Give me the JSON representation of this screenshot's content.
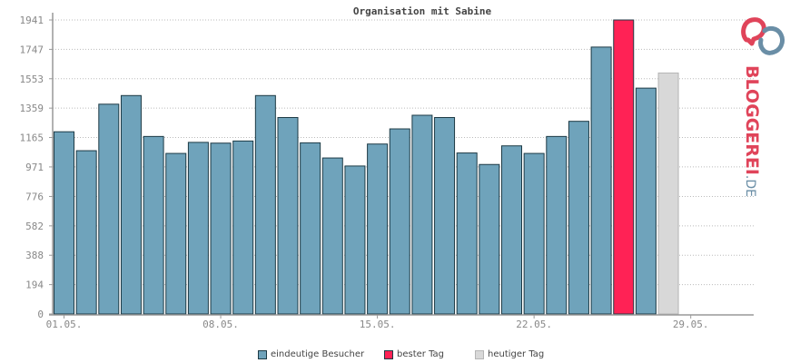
{
  "chart_data": {
    "type": "bar",
    "title": "Organisation mit Sabine",
    "xlabel": "",
    "ylabel": "",
    "ylim": [
      0,
      1941
    ],
    "yticks": [
      0,
      194,
      388,
      582,
      776,
      971,
      1165,
      1359,
      1553,
      1747,
      1941
    ],
    "xtick_labels": [
      {
        "day": 1,
        "label": "01.05."
      },
      {
        "day": 8,
        "label": "08.05."
      },
      {
        "day": 15,
        "label": "15.05."
      },
      {
        "day": 22,
        "label": "22.05."
      },
      {
        "day": 29,
        "label": "29.05."
      }
    ],
    "grid": true,
    "days": [
      1,
      2,
      3,
      4,
      5,
      6,
      7,
      8,
      9,
      10,
      11,
      12,
      13,
      14,
      15,
      16,
      17,
      18,
      19,
      20,
      21,
      22,
      23,
      24,
      25,
      26,
      27,
      28
    ],
    "values": [
      1203,
      1078,
      1385,
      1442,
      1172,
      1060,
      1133,
      1128,
      1142,
      1442,
      1297,
      1130,
      1030,
      977,
      1122,
      1222,
      1312,
      1297,
      1063,
      987,
      1110,
      1060,
      1172,
      1272,
      1762,
      1941,
      1491,
      1591
    ],
    "kinds": [
      "u",
      "u",
      "u",
      "u",
      "u",
      "u",
      "u",
      "u",
      "u",
      "u",
      "u",
      "u",
      "u",
      "u",
      "u",
      "u",
      "u",
      "u",
      "u",
      "u",
      "u",
      "u",
      "u",
      "u",
      "u",
      "best",
      "u",
      "today"
    ],
    "series": [
      {
        "name": "eindeutige Besucher",
        "color": "#6fa3bb"
      },
      {
        "name": "bester Tag",
        "color": "#ff2255"
      },
      {
        "name": "heutiger Tag",
        "color": "#d8d8d8"
      }
    ],
    "legend_position": "bottom"
  },
  "logo": {
    "text_main": "BLOGGEREI",
    "text_suffix": ".DE",
    "colors": {
      "red": "#e0445a",
      "blue": "#6a8ea6"
    }
  }
}
